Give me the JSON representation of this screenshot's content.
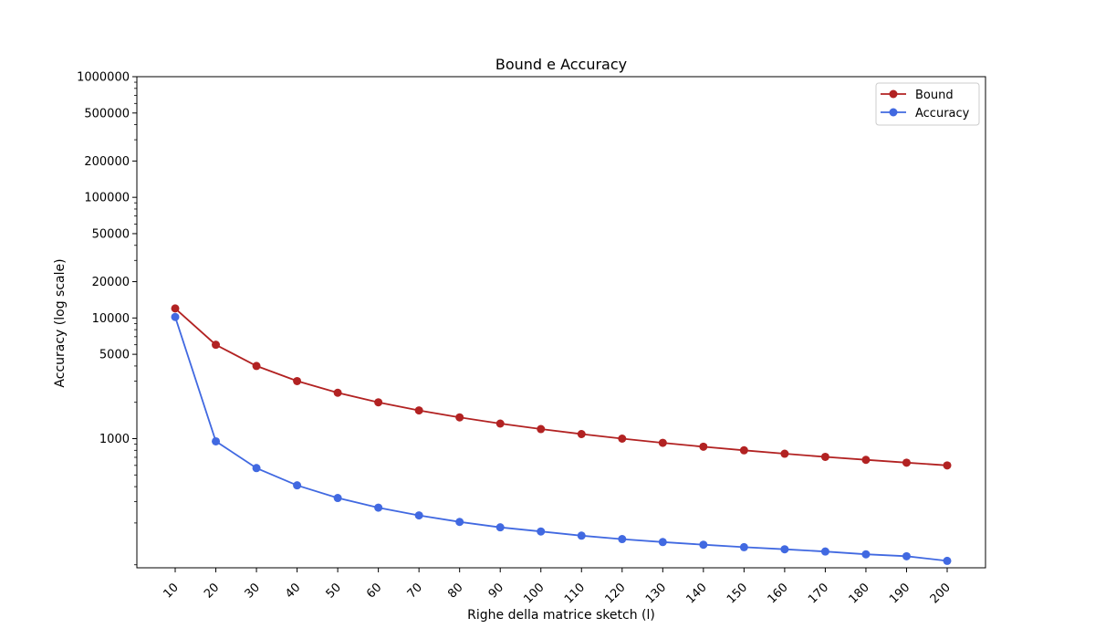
{
  "chart_data": {
    "type": "line",
    "title": "Bound e Accuracy",
    "xlabel": "Righe della matrice sketch (l)",
    "ylabel": "Accuracy (log scale)",
    "yscale": "log",
    "ylim": [
      85,
      1000000
    ],
    "grid": false,
    "legend_position": "top-right",
    "x": [
      10,
      20,
      30,
      40,
      50,
      60,
      70,
      80,
      90,
      100,
      110,
      120,
      130,
      140,
      150,
      160,
      170,
      180,
      190,
      200
    ],
    "ytick_values": [
      1000,
      5000,
      10000,
      20000,
      50000,
      100000,
      200000,
      500000,
      1000000
    ],
    "ytick_labels": [
      "1000",
      "5000",
      "10000",
      "20000",
      "50000",
      "100000",
      "200000",
      "500000",
      "1000000"
    ],
    "series": [
      {
        "name": "Bound",
        "color": "#b22222",
        "values": [
          12000,
          6000,
          4000,
          3000,
          2400,
          2000,
          1714,
          1500,
          1333,
          1200,
          1091,
          1000,
          923,
          857,
          800,
          750,
          706,
          667,
          632,
          600
        ]
      },
      {
        "name": "Accuracy",
        "color": "#4169e1",
        "values": [
          10200,
          950,
          570,
          410,
          322,
          268,
          231,
          204,
          184,
          170,
          157,
          147,
          139,
          132,
          126,
          121,
          116,
          110,
          106,
          97
        ]
      }
    ]
  }
}
